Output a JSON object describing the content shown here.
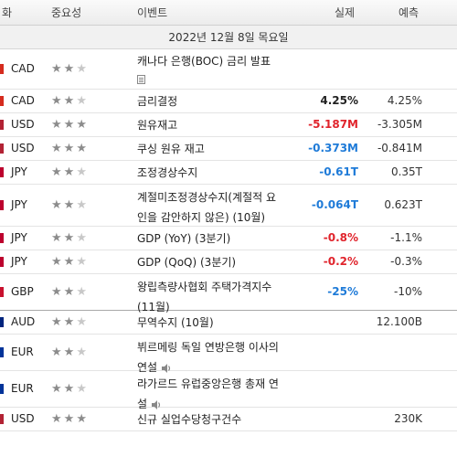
{
  "header": {
    "col_currency": "화",
    "col_importance": "중요성",
    "col_event": "이벤트",
    "col_actual": "실제",
    "col_forecast": "예측"
  },
  "date_label": "2022년 12월 8일 목요일",
  "colors": {
    "negative": "#e0242c",
    "positive": "#1f7bd8"
  },
  "rows": [
    {
      "currency": "CAD",
      "stars": 2,
      "event": "캐나다 은행(BOC) 금리 발표",
      "actual": "",
      "forecast": "",
      "previous": "",
      "icon": "document-icon",
      "flag": "#d52b1e"
    },
    {
      "currency": "CAD",
      "stars": 2,
      "event": "금리결정",
      "actual": "4.25%",
      "forecast": "4.25%",
      "previous": "",
      "flag": "#d52b1e"
    },
    {
      "currency": "USD",
      "stars": 3,
      "event": "원유재고",
      "actual": "-5.187M",
      "forecast": "-3.305M",
      "previous": "-",
      "flag": "#b22234"
    },
    {
      "currency": "USD",
      "stars": 3,
      "event": "쿠싱 원유 재고",
      "actual": "-0.373M",
      "forecast": "-0.841M",
      "previous": "",
      "flag": "#b22234"
    },
    {
      "currency": "JPY",
      "stars": 2,
      "event": "조정경상수지",
      "actual": "-0.61T",
      "forecast": "0.35T",
      "previous": "",
      "flag": "#bc002d"
    },
    {
      "currency": "JPY",
      "stars": 2,
      "event_lines": [
        "계절미조정경상수지(계절적 요",
        "인을 감안하지 않은) (10월)"
      ],
      "actual": "-0.064T",
      "forecast": "0.623T",
      "previous": "",
      "flag": "#bc002d"
    },
    {
      "currency": "JPY",
      "stars": 2,
      "event": "GDP (YoY) (3분기)",
      "actual": "-0.8%",
      "forecast": "-1.1%",
      "previous": "",
      "flag": "#bc002d"
    },
    {
      "currency": "JPY",
      "stars": 2,
      "event": "GDP (QoQ) (3분기)",
      "actual": "-0.2%",
      "forecast": "-0.3%",
      "previous": "",
      "flag": "#bc002d"
    },
    {
      "currency": "GBP",
      "stars": 2,
      "event_lines": [
        "왕립측량사협회 주택가격지수",
        "(11월)"
      ],
      "actual": "-25%",
      "forecast": "-10%",
      "previous": "",
      "flag": "#c8102e"
    },
    {
      "currency": "AUD",
      "stars": 2,
      "event": "무역수지 (10월)",
      "actual": "",
      "forecast": "12.100B",
      "previous": "",
      "flag": "#00247d"
    },
    {
      "currency": "EUR",
      "stars": 2,
      "event_lines": [
        "뷔르메링 독일 연방은행 이사의",
        "연설"
      ],
      "actual": "",
      "forecast": "",
      "previous": "",
      "icon": "speaker-icon",
      "flag": "#003399"
    },
    {
      "currency": "EUR",
      "stars": 2,
      "event_lines": [
        "라가르드 유럽중앙은행 총재 연",
        "설"
      ],
      "actual": "",
      "forecast": "",
      "previous": "",
      "icon": "speaker-icon",
      "flag": "#003399"
    },
    {
      "currency": "USD",
      "stars": 3,
      "event": "신규 실업수당청구건수",
      "actual": "",
      "forecast": "230K",
      "previous": "",
      "flag": "#b22234"
    }
  ]
}
